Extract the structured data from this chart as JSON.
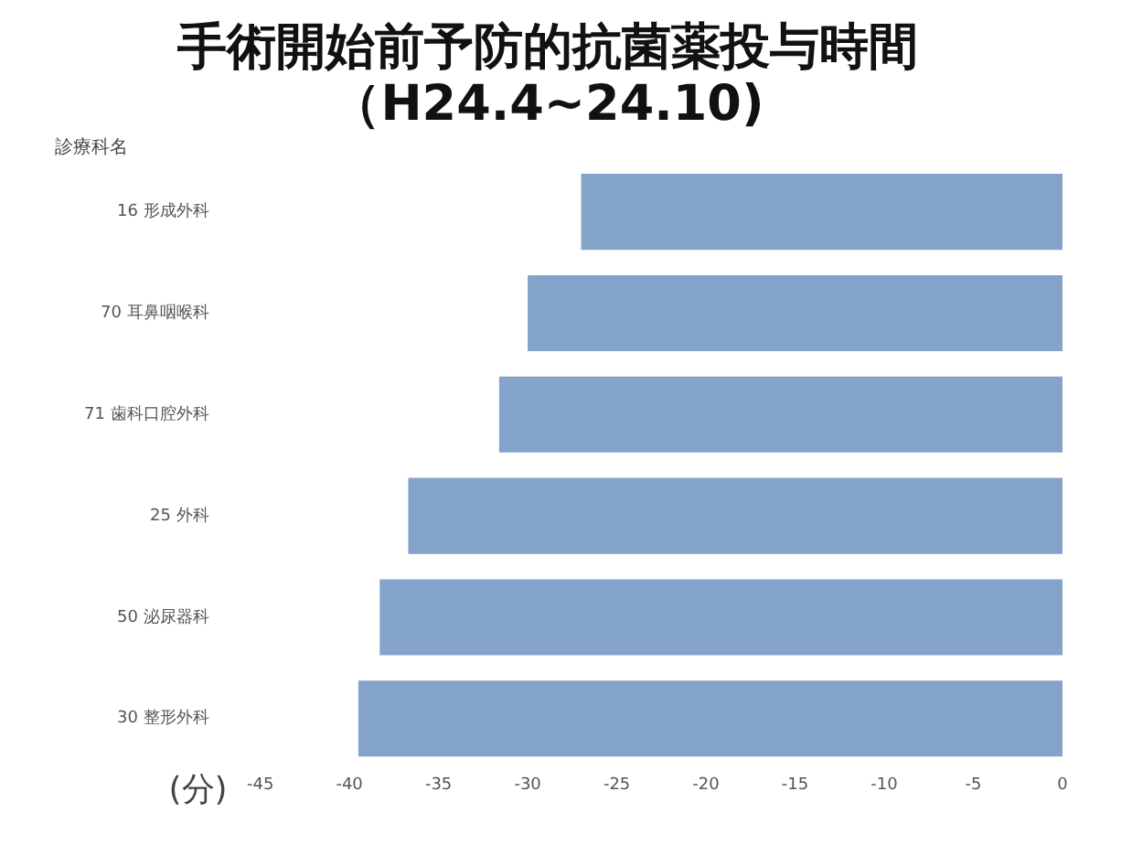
{
  "chart_data": {
    "type": "bar",
    "orientation": "horizontal",
    "title": "手術開始前予防的抗菌薬投与時間",
    "subtitle": "（H24.4~24.10)",
    "ylabel": "診療科名",
    "xlabel": "(分)",
    "categories": [
      "16 形成外科",
      "70 耳鼻咽喉科",
      "71 歯科口腔外科",
      "25 外科",
      "50 泌尿器科",
      "30 整形外科"
    ],
    "values": [
      -27,
      -30,
      -31.6,
      -36.7,
      -38.3,
      -39.5
    ],
    "color": "#84a3cb",
    "xlim": [
      -45,
      0
    ],
    "xticks": [
      -45,
      -40,
      -35,
      -30,
      -25,
      -20,
      -15,
      -10,
      -5,
      0
    ],
    "grid": false,
    "legend": false
  }
}
